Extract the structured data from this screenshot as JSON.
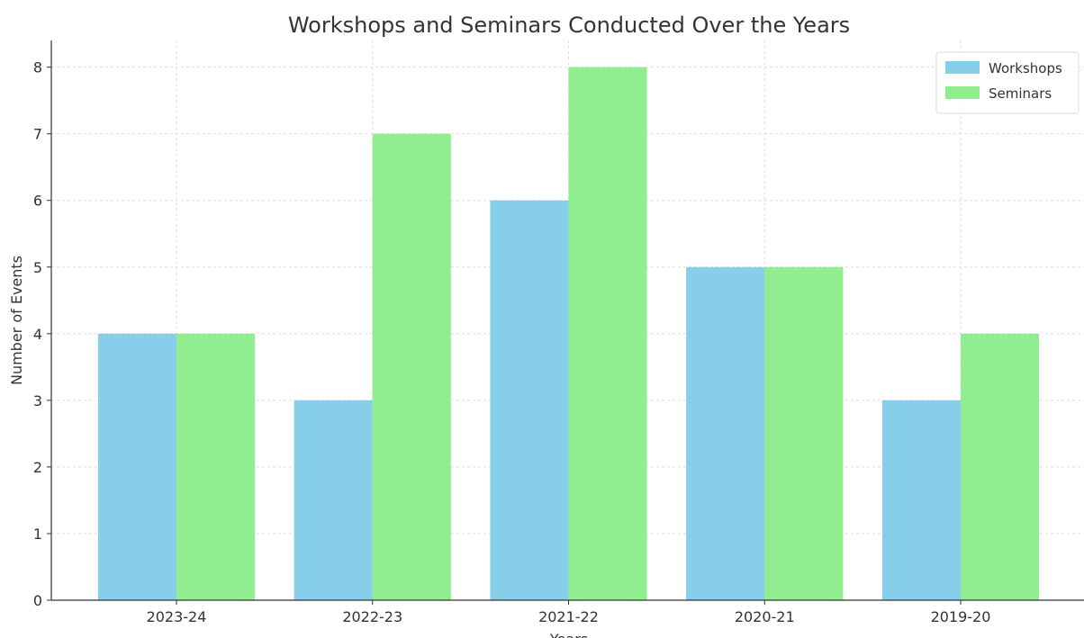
{
  "chart_data": {
    "type": "bar",
    "title": "Workshops and Seminars Conducted Over the Years",
    "x_label": "Years",
    "y_label": "Number of Events",
    "categories": [
      "2023-24",
      "2022-23",
      "2021-22",
      "2020-21",
      "2019-20"
    ],
    "series": [
      {
        "name": "Workshops",
        "color": "#87ceeb",
        "values": [
          4,
          3,
          6,
          5,
          3
        ]
      },
      {
        "name": "Seminars",
        "color": "#90ee90",
        "values": [
          4,
          7,
          8,
          5,
          4
        ]
      }
    ],
    "ylim": [
      0,
      8.4
    ],
    "yticks": [
      0,
      1,
      2,
      3,
      4,
      5,
      6,
      7,
      8
    ],
    "grid": true,
    "legend": "upper right"
  }
}
